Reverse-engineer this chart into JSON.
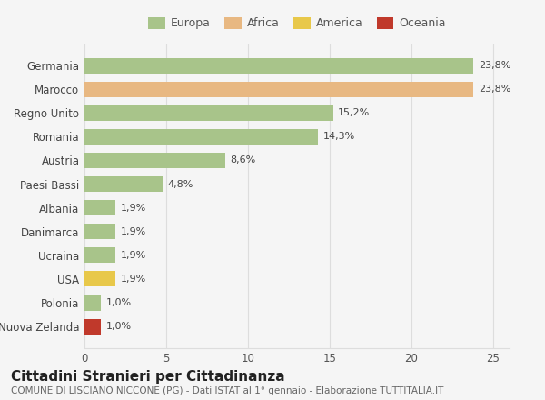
{
  "categories": [
    "Nuova Zelanda",
    "Polonia",
    "USA",
    "Ucraina",
    "Danimarca",
    "Albania",
    "Paesi Bassi",
    "Austria",
    "Romania",
    "Regno Unito",
    "Marocco",
    "Germania"
  ],
  "values": [
    1.0,
    1.0,
    1.9,
    1.9,
    1.9,
    1.9,
    4.8,
    8.6,
    14.3,
    15.2,
    23.8,
    23.8
  ],
  "labels": [
    "1,0%",
    "1,0%",
    "1,9%",
    "1,9%",
    "1,9%",
    "1,9%",
    "4,8%",
    "8,6%",
    "14,3%",
    "15,2%",
    "23,8%",
    "23,8%"
  ],
  "colors": [
    "#c0392b",
    "#a8c48a",
    "#e8c84a",
    "#a8c48a",
    "#a8c48a",
    "#a8c48a",
    "#a8c48a",
    "#a8c48a",
    "#a8c48a",
    "#a8c48a",
    "#e8b882",
    "#a8c48a"
  ],
  "legend_labels": [
    "Europa",
    "Africa",
    "America",
    "Oceania"
  ],
  "legend_colors": [
    "#a8c48a",
    "#e8b882",
    "#e8c84a",
    "#c0392b"
  ],
  "title": "Cittadini Stranieri per Cittadinanza",
  "subtitle": "COMUNE DI LISCIANO NICCONE (PG) - Dati ISTAT al 1° gennaio - Elaborazione TUTTITALIA.IT",
  "xlim": [
    0,
    26
  ],
  "xticks": [
    0,
    5,
    10,
    15,
    20,
    25
  ],
  "background_color": "#f5f5f5",
  "grid_color": "#dddddd",
  "title_fontsize": 11,
  "subtitle_fontsize": 7.5,
  "label_fontsize": 8,
  "tick_fontsize": 8.5,
  "legend_fontsize": 9
}
